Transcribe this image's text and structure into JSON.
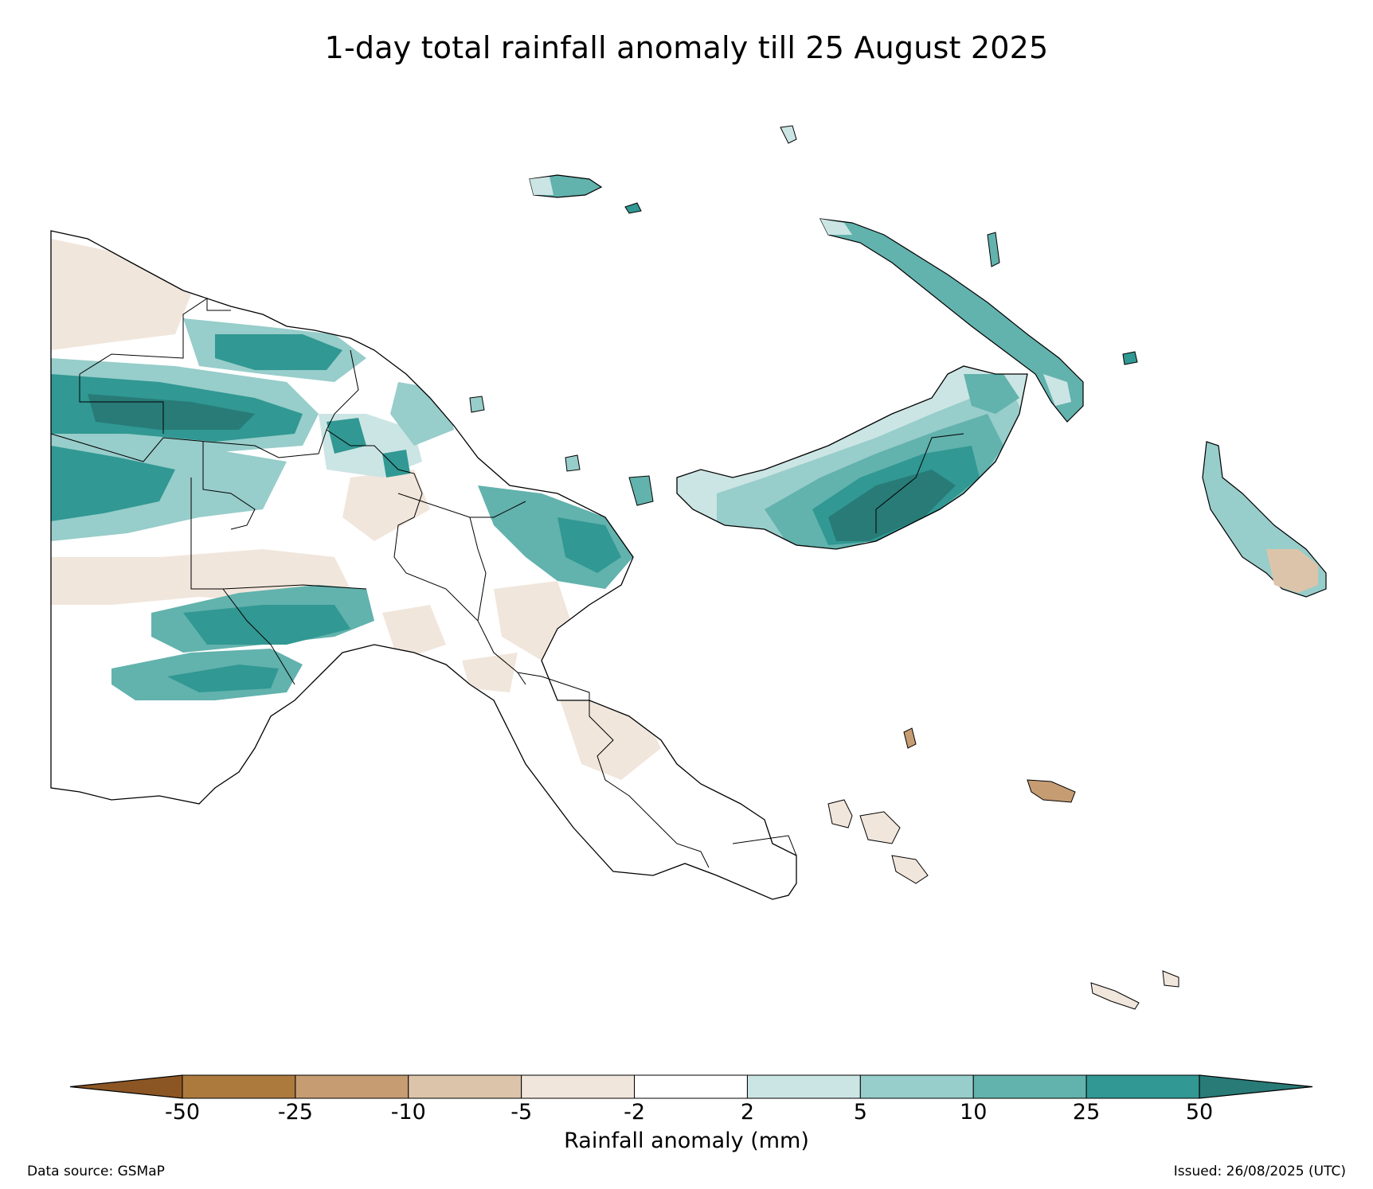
{
  "title": "1-day total rainfall anomaly till 25 August 2025",
  "legend": {
    "label": "Rainfall anomaly (mm)",
    "ticks": [
      "-50",
      "-25",
      "-10",
      "-5",
      "-2",
      "2",
      "5",
      "10",
      "25",
      "50"
    ],
    "colors": [
      "#8c5624",
      "#ad7a3e",
      "#c69c73",
      "#dcc4aa",
      "#f1e6dc",
      "#ffffff",
      "#cbe5e4",
      "#97cdca",
      "#62b2ad",
      "#319893",
      "#287b77"
    ]
  },
  "footer": {
    "source": "Data source: GSMaP",
    "issued": "Issued: 26/08/2025 (UTC)"
  }
}
